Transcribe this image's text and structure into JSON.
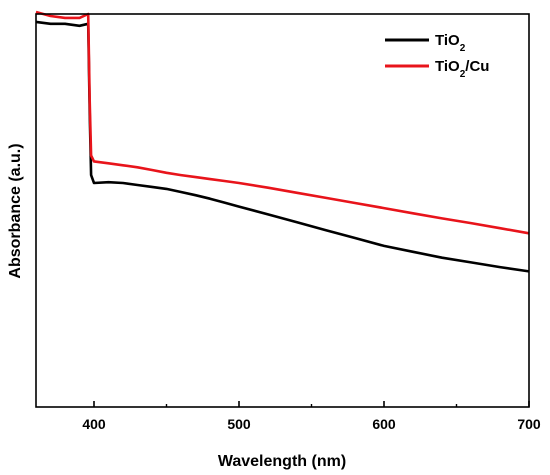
{
  "chart_data": {
    "type": "line",
    "xlabel": "Wavelength (nm)",
    "ylabel": "Absorbance (a.u.)",
    "xlim": [
      360,
      700
    ],
    "ylim": [
      0,
      1.0
    ],
    "x_ticks": [
      400,
      500,
      600,
      700
    ],
    "y_ticks_labeled": false,
    "grid": false,
    "legend_position": "top-right",
    "series": [
      {
        "name": "TiO",
        "subscript": "2",
        "suffix": "",
        "color": "#000000",
        "x": [
          360,
          370,
          380,
          390,
          396,
          397,
          398,
          400,
          410,
          420,
          430,
          440,
          450,
          460,
          470,
          480,
          490,
          500,
          520,
          540,
          560,
          580,
          600,
          620,
          640,
          660,
          680,
          700
        ],
        "y": [
          0.98,
          0.975,
          0.975,
          0.97,
          0.975,
          0.75,
          0.59,
          0.57,
          0.572,
          0.57,
          0.565,
          0.56,
          0.555,
          0.547,
          0.539,
          0.53,
          0.52,
          0.51,
          0.49,
          0.47,
          0.45,
          0.43,
          0.41,
          0.395,
          0.38,
          0.368,
          0.356,
          0.345
        ]
      },
      {
        "name": "TiO",
        "subscript": "2",
        "suffix": "/Cu",
        "color": "#e8141b",
        "x": [
          360,
          370,
          380,
          390,
          396,
          397,
          398,
          400,
          410,
          420,
          430,
          440,
          450,
          460,
          470,
          480,
          490,
          500,
          520,
          540,
          560,
          580,
          600,
          620,
          640,
          660,
          680,
          700
        ],
        "y": [
          1.005,
          0.995,
          0.99,
          0.99,
          1.0,
          0.78,
          0.64,
          0.625,
          0.62,
          0.615,
          0.61,
          0.603,
          0.596,
          0.59,
          0.585,
          0.58,
          0.575,
          0.57,
          0.558,
          0.545,
          0.532,
          0.519,
          0.506,
          0.493,
          0.48,
          0.468,
          0.455,
          0.442
        ]
      }
    ]
  }
}
